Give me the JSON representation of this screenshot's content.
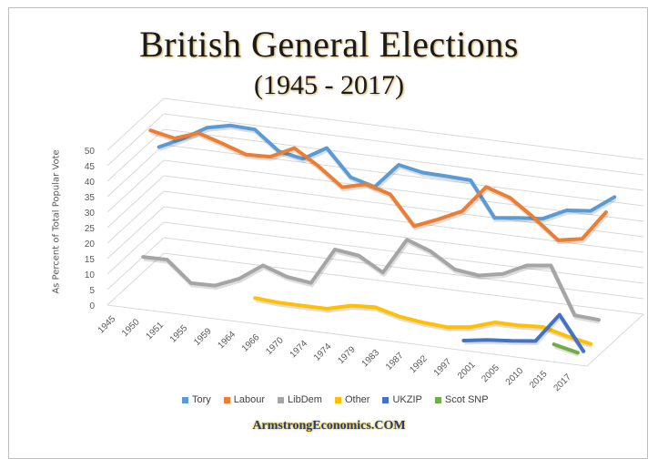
{
  "title": "British General Elections",
  "subtitle": "(1945 - 2017)",
  "credit": "ArmstrongEconomics.COM",
  "chart_data": {
    "type": "line",
    "ylabel": "As Percent of Total Popular Vote",
    "ylim": [
      0,
      50
    ],
    "yticks": [
      "0",
      "5",
      "10",
      "15",
      "20",
      "25",
      "30",
      "35",
      "40",
      "45",
      "50"
    ],
    "categories": [
      "1945",
      "1950",
      "1951",
      "1955",
      "1959",
      "1964",
      "1966",
      "1970",
      "1974",
      "1974",
      "1979",
      "1983",
      "1987",
      "1992",
      "1997",
      "2001",
      "2005",
      "2010",
      "2015",
      "2017"
    ],
    "grid": true,
    "legend_position": "bottom",
    "series": [
      {
        "name": "Tory",
        "color": "#5b9bd5",
        "values": [
          39.8,
          43.5,
          48.0,
          49.7,
          49.4,
          43.4,
          41.9,
          46.4,
          37.9,
          35.8,
          43.9,
          42.4,
          42.2,
          41.9,
          30.7,
          31.7,
          32.4,
          36.1,
          36.9,
          42.4
        ]
      },
      {
        "name": "Labour",
        "color": "#ed7d31",
        "values": [
          47.7,
          46.1,
          48.8,
          46.4,
          43.8,
          44.1,
          47.9,
          43.1,
          37.2,
          39.2,
          36.9,
          27.6,
          30.8,
          34.4,
          43.2,
          40.7,
          35.2,
          29.0,
          30.4,
          40.0
        ]
      },
      {
        "name": "LibDem",
        "color": "#a5a5a5",
        "values": [
          9.0,
          9.1,
          2.5,
          2.7,
          5.9,
          11.2,
          8.5,
          7.5,
          19.3,
          18.3,
          13.8,
          25.4,
          22.6,
          17.8,
          16.8,
          18.3,
          22.0,
          23.0,
          7.9,
          7.4
        ]
      },
      {
        "name": "Other",
        "color": "#ffc000",
        "values": [
          null,
          null,
          null,
          null,
          null,
          3.0,
          2.5,
          2.5,
          2.5,
          4.5,
          5.0,
          3.0,
          2.0,
          1.5,
          2.5,
          5.0,
          5.0,
          5.5,
          3.5,
          2.0
        ]
      },
      {
        "name": "UKZIP",
        "color": "#4472c4",
        "values": [
          null,
          null,
          null,
          null,
          null,
          null,
          null,
          null,
          null,
          null,
          null,
          null,
          null,
          null,
          0.3,
          1.5,
          2.2,
          3.1,
          12.6,
          1.8
        ]
      },
      {
        "name": "Scot SNP",
        "color": "#70ad47",
        "values": [
          null,
          null,
          null,
          null,
          null,
          null,
          null,
          null,
          null,
          null,
          null,
          null,
          null,
          null,
          null,
          null,
          null,
          null,
          4.7,
          3.0
        ]
      }
    ]
  }
}
